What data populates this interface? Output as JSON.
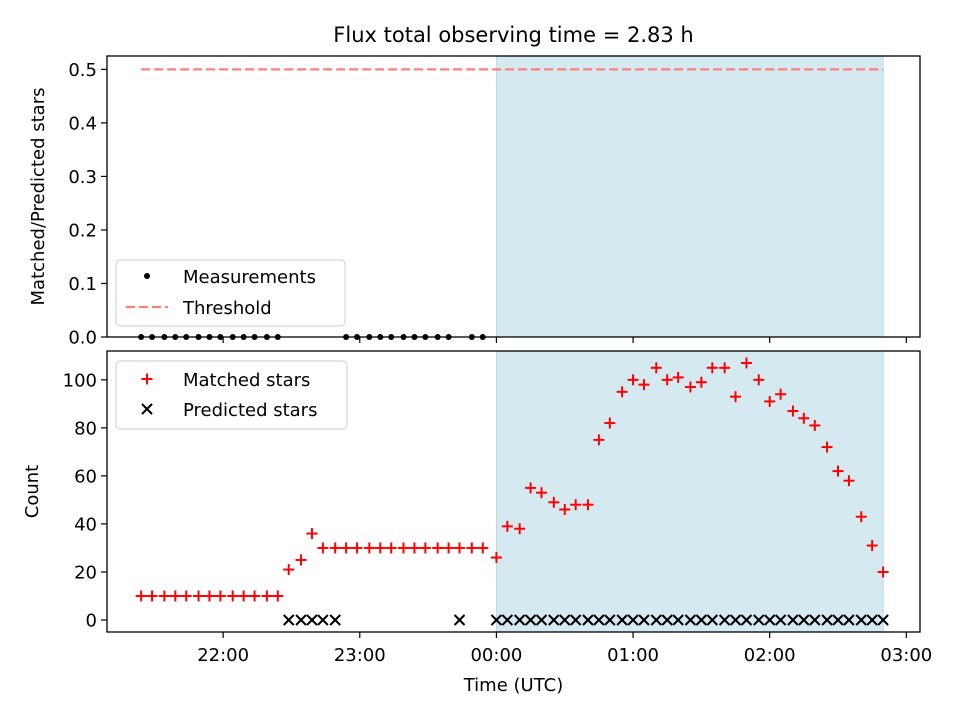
{
  "chart_data": [
    {
      "type": "scatter",
      "title": "Flux total observing time = 2.83 h",
      "xlabel": "",
      "ylabel": "Matched/Predicted stars",
      "ylim": [
        0,
        0.525
      ],
      "yticks": [
        0.0,
        0.1,
        0.2,
        0.3,
        0.4,
        0.5
      ],
      "ytick_labels": [
        "0.0",
        "0.1",
        "0.2",
        "0.3",
        "0.4",
        "0.5"
      ],
      "xlim_hours": [
        -2.85,
        3.1
      ],
      "xtick_hours": [
        -2,
        -1,
        0,
        1,
        2,
        3
      ],
      "shaded_region_hours": [
        0.0,
        2.83
      ],
      "threshold": {
        "name": "Threshold",
        "y": 0.5,
        "x_range_hours": [
          -2.6,
          2.83
        ],
        "color": "#ff7f7f"
      },
      "series": [
        {
          "name": "Measurements",
          "marker": "dot",
          "color": "#000000",
          "x_hours": [
            -2.6,
            -2.52,
            -2.43,
            -2.35,
            -2.27,
            -2.18,
            -2.1,
            -2.02,
            -1.93,
            -1.85,
            -1.77,
            -1.68,
            -1.6,
            -1.1,
            -1.02,
            -0.93,
            -0.85,
            -0.77,
            -0.68,
            -0.6,
            -0.52,
            -0.43,
            -0.35,
            -0.18,
            -0.1
          ],
          "y": [
            0,
            0,
            0,
            0,
            0,
            0,
            0,
            0,
            0,
            0,
            0,
            0,
            0,
            0,
            0,
            0,
            0,
            0,
            0,
            0,
            0,
            0,
            0,
            0,
            0
          ]
        }
      ],
      "legend_position": "lower-left",
      "legend": [
        "Measurements",
        "Threshold"
      ]
    },
    {
      "type": "scatter",
      "xlabel": "Time (UTC)",
      "ylabel": "Count",
      "ylim": [
        -5,
        112
      ],
      "yticks": [
        0,
        20,
        40,
        60,
        80,
        100
      ],
      "ytick_labels": [
        "0",
        "20",
        "40",
        "60",
        "80",
        "100"
      ],
      "xlim_hours": [
        -2.85,
        3.1
      ],
      "xtick_hours": [
        -2,
        -1,
        0,
        1,
        2,
        3
      ],
      "xtick_labels": [
        "22:00",
        "23:00",
        "00:00",
        "01:00",
        "02:00",
        "03:00"
      ],
      "shaded_region_hours": [
        0.0,
        2.83
      ],
      "series": [
        {
          "name": "Matched stars",
          "marker": "plus",
          "color": "#ff0000",
          "x_hours": [
            -2.6,
            -2.52,
            -2.43,
            -2.35,
            -2.27,
            -2.18,
            -2.1,
            -2.02,
            -1.93,
            -1.85,
            -1.77,
            -1.68,
            -1.6,
            -1.52,
            -1.43,
            -1.35,
            -1.27,
            -1.18,
            -1.1,
            -1.02,
            -0.93,
            -0.85,
            -0.77,
            -0.68,
            -0.6,
            -0.52,
            -0.43,
            -0.35,
            -0.27,
            -0.18,
            -0.1,
            0.0,
            0.08,
            0.17,
            0.25,
            0.33,
            0.42,
            0.5,
            0.58,
            0.67,
            0.75,
            0.83,
            0.92,
            1.0,
            1.08,
            1.17,
            1.25,
            1.33,
            1.42,
            1.5,
            1.58,
            1.67,
            1.75,
            1.83,
            1.92,
            2.0,
            2.08,
            2.17,
            2.25,
            2.33,
            2.42,
            2.5,
            2.58,
            2.67,
            2.75,
            2.83
          ],
          "y": [
            10,
            10,
            10,
            10,
            10,
            10,
            10,
            10,
            10,
            10,
            10,
            10,
            10,
            21,
            25,
            36,
            30,
            30,
            30,
            30,
            30,
            30,
            30,
            30,
            30,
            30,
            30,
            30,
            30,
            30,
            30,
            26,
            39,
            38,
            55,
            53,
            49,
            46,
            48,
            48,
            75,
            82,
            95,
            100,
            98,
            105,
            100,
            101,
            97,
            99,
            105,
            105,
            93,
            107,
            100,
            91,
            94,
            87,
            84,
            81,
            72,
            62,
            58,
            43,
            31,
            20
          ]
        },
        {
          "name": "Predicted stars",
          "marker": "x",
          "color": "#000000",
          "x_hours": [
            -1.52,
            -1.43,
            -1.35,
            -1.27,
            -1.18,
            -0.27,
            0.0,
            0.08,
            0.17,
            0.25,
            0.33,
            0.42,
            0.5,
            0.58,
            0.67,
            0.75,
            0.83,
            0.92,
            1.0,
            1.08,
            1.17,
            1.25,
            1.33,
            1.42,
            1.5,
            1.58,
            1.67,
            1.75,
            1.83,
            1.92,
            2.0,
            2.08,
            2.17,
            2.25,
            2.33,
            2.42,
            2.5,
            2.58,
            2.67,
            2.75,
            2.83
          ],
          "y": [
            0,
            0,
            0,
            0,
            0,
            0,
            0,
            0,
            0,
            0,
            0,
            0,
            0,
            0,
            0,
            0,
            0,
            0,
            0,
            0,
            0,
            0,
            0,
            0,
            0,
            0,
            0,
            0,
            0,
            0,
            0,
            0,
            0,
            0,
            0,
            0,
            0,
            0,
            0,
            0,
            0
          ]
        }
      ],
      "legend_position": "top-left",
      "legend": [
        "Matched stars",
        "Predicted stars"
      ]
    }
  ],
  "colors": {
    "shade": "#d4eaf0",
    "shade_edge": "#b8dbe6",
    "matched": "#ff0000",
    "predicted": "#000000",
    "threshold": "#ff7f7f"
  }
}
